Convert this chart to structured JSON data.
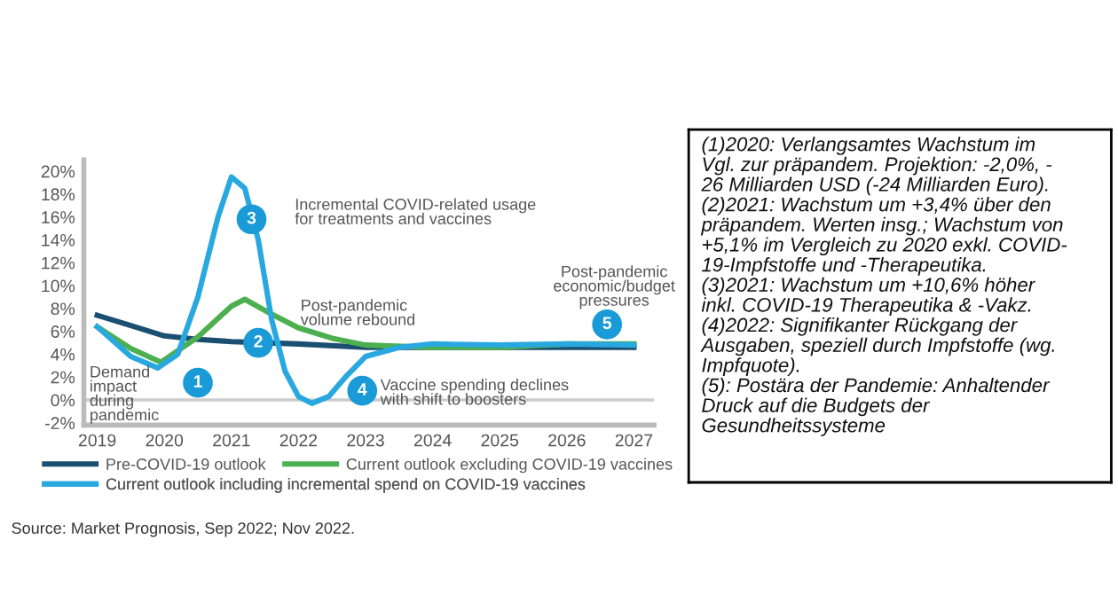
{
  "chart_data": [
    {
      "type": "line",
      "series": [
        {
          "name": "Pre-COVID-19 outlook",
          "color": "#1b4f72",
          "x": [
            2019,
            2019.5,
            2020,
            2020.5,
            2021,
            2022,
            2023,
            2024,
            2025,
            2026,
            2027
          ],
          "values": [
            7.4,
            6.5,
            5.6,
            5.3,
            5.1,
            4.9,
            4.6,
            4.6,
            4.6,
            4.6,
            4.6
          ]
        },
        {
          "name": "Current outlook excluding COVID-19 vaccines",
          "color": "#4caf50",
          "x": [
            2019,
            2019.5,
            2019.95,
            2020.5,
            2021,
            2021.2,
            2021.6,
            2022,
            2022.5,
            2023,
            2024,
            2025,
            2026,
            2027
          ],
          "values": [
            6.4,
            4.5,
            3.3,
            5.5,
            8.2,
            8.8,
            7.5,
            6.3,
            5.4,
            4.8,
            4.6,
            4.6,
            4.9,
            4.9
          ]
        },
        {
          "name": "Current outlook including incremental spend on COVID-19 vaccines",
          "color": "#29a8e0",
          "x": [
            2019,
            2019.5,
            2019.9,
            2020.2,
            2020.5,
            2020.8,
            2021,
            2021.2,
            2021.4,
            2021.6,
            2021.8,
            2022,
            2022.2,
            2022.45,
            2022.7,
            2023,
            2023.5,
            2024,
            2025,
            2026,
            2027
          ],
          "values": [
            6.4,
            3.8,
            2.8,
            4.0,
            9,
            16,
            19.5,
            18.5,
            14,
            7,
            2.5,
            0.3,
            -0.3,
            0.3,
            2,
            3.8,
            4.6,
            4.9,
            4.8,
            4.9,
            4.8
          ]
        }
      ],
      "xlim": [
        2018.8,
        2027.3
      ],
      "xticks": [
        2019,
        2020,
        2021,
        2022,
        2023,
        2024,
        2025,
        2026,
        2027
      ],
      "ylim": [
        -2.2,
        21
      ],
      "yticks": [
        {
          "value": -2,
          "label": "-2%"
        },
        {
          "value": 0,
          "label": "0%"
        },
        {
          "value": 2,
          "label": "2%"
        },
        {
          "value": 4,
          "label": "4%"
        },
        {
          "value": 6,
          "label": "6%"
        },
        {
          "value": 8,
          "label": "8%"
        },
        {
          "value": 10,
          "label": "10%"
        },
        {
          "value": 12,
          "label": "12%"
        },
        {
          "value": 14,
          "label": "14%"
        },
        {
          "value": 16,
          "label": "16%"
        },
        {
          "value": 18,
          "label": "18%"
        },
        {
          "value": 20,
          "label": "20%"
        }
      ],
      "ref_lines": [
        {
          "axis": "y",
          "value": 0,
          "color": "#cccccc"
        }
      ],
      "grid": false,
      "legend": "bottom",
      "marker": "none",
      "line_style": "solid",
      "annotations": [
        {
          "text": "1",
          "x": 2020.5,
          "y": 1.5
        },
        {
          "text": "2",
          "x": 2021.4,
          "y": 5.0
        },
        {
          "text": "3",
          "x": 2021.3,
          "y": 15.8
        },
        {
          "text": "4",
          "x": 2022.95,
          "y": 0.8
        },
        {
          "text": "5",
          "x": 2026.6,
          "y": 6.6
        },
        "Demand\nimpact\nduring\npandemic",
        "Post-pandemic\nvolume rebound",
        "Incremental COVID-related usage\nfor treatments and vaccines",
        "Vaccine spending declines\nwith shift to boosters",
        "Post-pandemic\neconomic/budget\npressures",
        "Source: Market Prognosis, Sep 2022; Nov 2022."
      ]
    },
    {
      "type": "other",
      "annotations": [
        "(1)2020: Verlangsamtes Wachstum im\nVgl. zur präpandem. Projektion: -2,0%, -\n26 Milliarden USD (-24 Milliarden Euro).",
        "(2)2021: Wachstum um +3,4% über den\npräpandem. Werten insg.; Wachstum von\n+5,1% im Vergleich zu 2020 exkl. COVID-\n19-Impfstoffe und -Therapeutika.",
        "(3)2021: Wachstum um +10,6% höher\ninkl. COVID-19 Therapeutika & -Vakz.",
        "(4)2022: Signifikanter Rückgang der\nAusgaben, speziell durch Impfstoffe (wg.\nImpfquote).",
        "(5): Postära der Pandemie: Anhaltender\nDruck auf die Budgets der\nGesundheitssysteme"
      ]
    }
  ]
}
